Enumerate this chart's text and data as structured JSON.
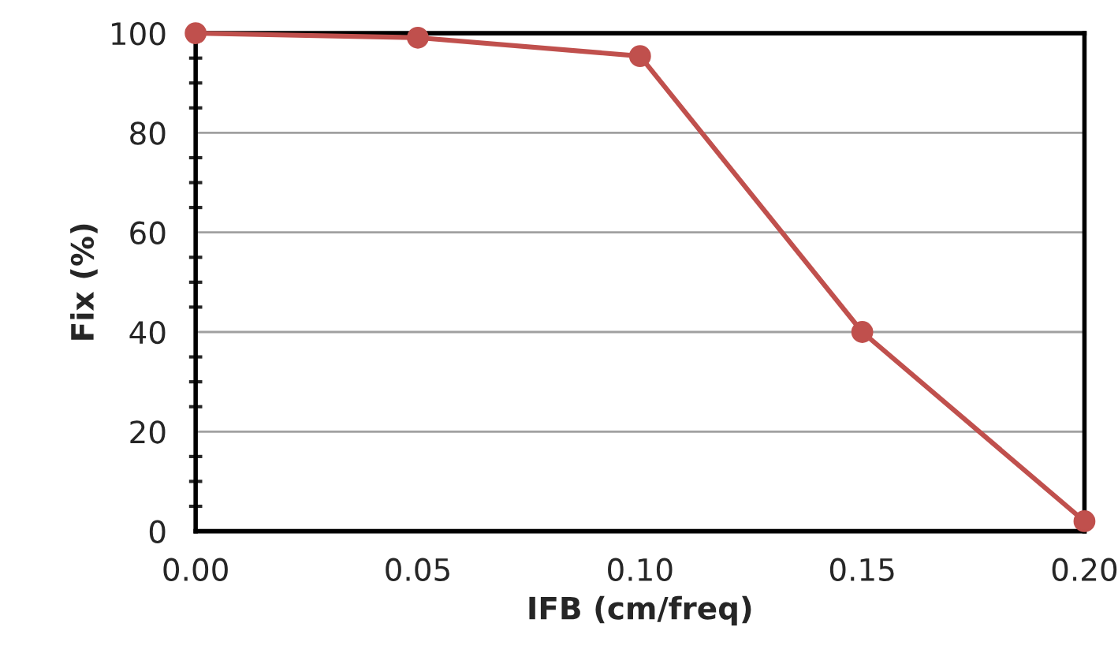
{
  "chart_data": {
    "type": "line",
    "xlabel": "IFB (cm/freq)",
    "ylabel": "Fix (%)",
    "x": [
      0.0,
      0.05,
      0.1,
      0.15,
      0.2
    ],
    "series": [
      {
        "color": "#c0504d",
        "values": [
          100,
          99.1,
          95.4,
          40,
          2
        ]
      }
    ],
    "xlim": [
      0.0,
      0.2
    ],
    "ylim": [
      0,
      100
    ],
    "xticks": [
      {
        "value": 0.0,
        "label": "0.00"
      },
      {
        "value": 0.05,
        "label": "0.05"
      },
      {
        "value": 0.1,
        "label": "0.10"
      },
      {
        "value": 0.15,
        "label": "0.15"
      },
      {
        "value": 0.2,
        "label": "0.20"
      }
    ],
    "yticks": [
      0,
      20,
      40,
      60,
      80,
      100
    ],
    "grid": "y",
    "marker": "circle",
    "line_style": "solid"
  }
}
